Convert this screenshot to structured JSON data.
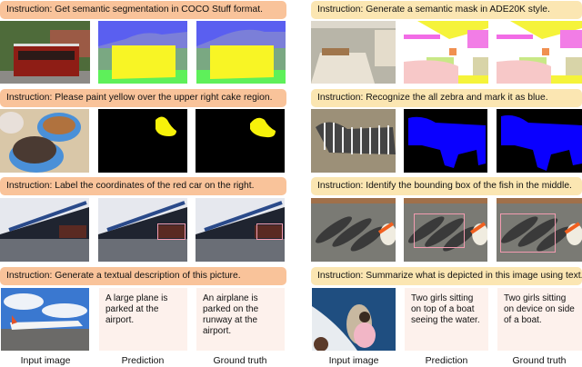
{
  "left": [
    {
      "instruction": "Instruction: Get semantic segmentation in COCO Stuff format."
    },
    {
      "instruction": "Instruction: Please paint yellow over the upper right cake region."
    },
    {
      "instruction": "Instruction: Label the coordinates of the red car on the right."
    },
    {
      "instruction": "Instruction: Generate a textual description of this picture.",
      "prediction": "A large plane is parked at the airport.",
      "ground_truth": "An airplane is parked on the runway at the airport."
    }
  ],
  "right": [
    {
      "instruction": "Instruction: Generate a semantic mask in ADE20K style."
    },
    {
      "instruction": "Instruction: Recognize the all zebra and mark it as blue."
    },
    {
      "instruction": "Instruction: Identify the bounding box of the fish in the middle."
    },
    {
      "instruction": "Instruction: Summarize what is depicted in this image using text.",
      "prediction": "Two girls sitting on top of a boat seeing the water.",
      "ground_truth": "Two girls sitting on device on side of a boat."
    }
  ],
  "captions": {
    "input": "Input image",
    "prediction": "Prediction",
    "ground_truth": "Ground truth"
  },
  "colors": {
    "left_banner": "#f9c39a",
    "right_banner": "#fbe6b2",
    "bbox": "#f29bb0",
    "text_panel": "#fdf1ec"
  }
}
